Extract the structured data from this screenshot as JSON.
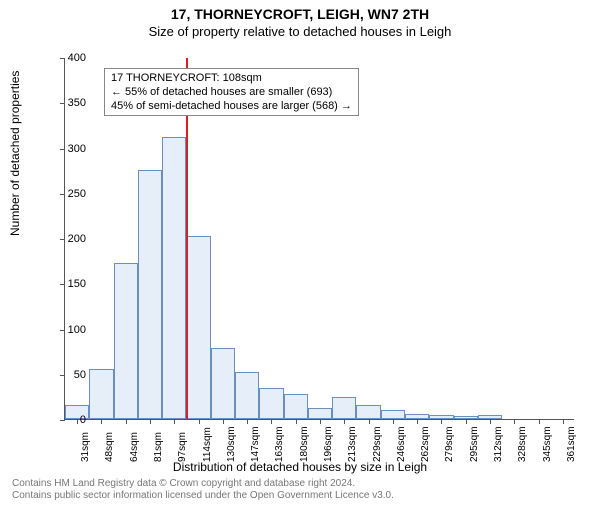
{
  "title": "17, THORNEYCROFT, LEIGH, WN7 2TH",
  "subtitle": "Size of property relative to detached houses in Leigh",
  "ylabel": "Number of detached properties",
  "xlabel": "Distribution of detached houses by size in Leigh",
  "footer_line1": "Contains HM Land Registry data © Crown copyright and database right 2024.",
  "footer_line2": "Contains public sector information licensed under the Open Government Licence v3.0.",
  "chart": {
    "type": "histogram",
    "ylim": [
      0,
      400
    ],
    "yticks": [
      0,
      50,
      100,
      150,
      200,
      250,
      300,
      350,
      400
    ],
    "x_labels": [
      "31sqm",
      "48sqm",
      "64sqm",
      "81sqm",
      "97sqm",
      "114sqm",
      "130sqm",
      "147sqm",
      "163sqm",
      "180sqm",
      "196sqm",
      "213sqm",
      "229sqm",
      "246sqm",
      "262sqm",
      "279sqm",
      "295sqm",
      "312sqm",
      "328sqm",
      "345sqm",
      "361sqm"
    ],
    "values": [
      15,
      55,
      172,
      275,
      312,
      202,
      78,
      52,
      34,
      28,
      12,
      24,
      15,
      10,
      6,
      4,
      3,
      4,
      0,
      0,
      0
    ],
    "bar_fill": "#e6eef9",
    "bar_border": "#6a8fc3",
    "vline_index_after": 4,
    "vline_color": "#d81e29",
    "background": "#ffffff",
    "axis_color": "#555555",
    "tick_fontsize": 10,
    "label_fontsize": 12,
    "title_fontsize": 14
  },
  "annotation": {
    "line1": "17 THORNEYCROFT: 108sqm",
    "line2": "← 55% of detached houses are smaller (693)",
    "line3": "45% of semi-detached houses are larger (568) →",
    "border_color": "#888888"
  }
}
